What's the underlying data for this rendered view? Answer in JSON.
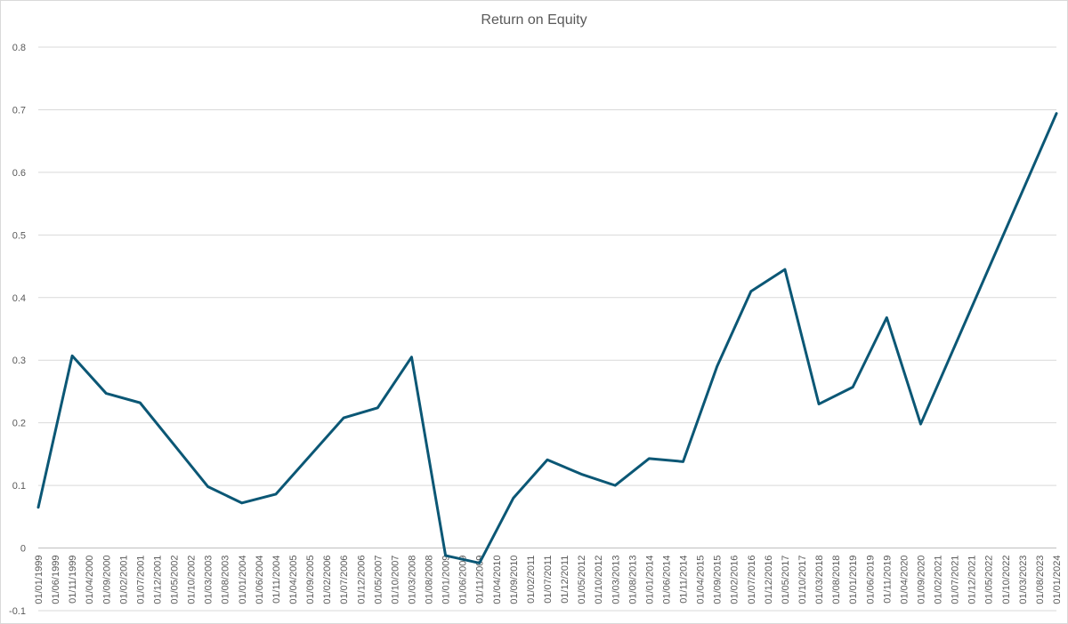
{
  "chart_data": {
    "type": "line",
    "title": "Return on Equity",
    "xlabel": "",
    "ylabel": "",
    "ylim": [
      -0.1,
      0.8
    ],
    "yticks": [
      -0.1,
      0,
      0.1,
      0.2,
      0.3,
      0.4,
      0.5,
      0.6,
      0.7,
      0.8
    ],
    "ytick_labels": [
      "-0.1",
      "0",
      "0.1",
      "0.2",
      "0.3",
      "0.4",
      "0.5",
      "0.6",
      "0.7",
      "0.8"
    ],
    "grid": true,
    "legend": "none",
    "line_color": "#0b5775",
    "categories": [
      "01/01/1999",
      "01/06/1999",
      "01/11/1999",
      "01/04/2000",
      "01/09/2000",
      "01/02/2001",
      "01/07/2001",
      "01/12/2001",
      "01/05/2002",
      "01/10/2002",
      "01/03/2003",
      "01/08/2003",
      "01/01/2004",
      "01/06/2004",
      "01/11/2004",
      "01/04/2005",
      "01/09/2005",
      "01/02/2006",
      "01/07/2006",
      "01/12/2006",
      "01/05/2007",
      "01/10/2007",
      "01/03/2008",
      "01/08/2008",
      "01/01/2009",
      "01/06/2009",
      "01/11/2009",
      "01/04/2010",
      "01/09/2010",
      "01/02/2011",
      "01/07/2011",
      "01/12/2011",
      "01/05/2012",
      "01/10/2012",
      "01/03/2013",
      "01/08/2013",
      "01/01/2014",
      "01/06/2014",
      "01/11/2014",
      "01/04/2015",
      "01/09/2015",
      "01/02/2016",
      "01/07/2016",
      "01/12/2016",
      "01/05/2017",
      "01/10/2017",
      "01/03/2018",
      "01/08/2018",
      "01/01/2019",
      "01/06/2019",
      "01/11/2019",
      "01/04/2020",
      "01/09/2020",
      "01/02/2021",
      "01/07/2021",
      "01/12/2021",
      "01/05/2022",
      "01/10/2022",
      "01/03/2023",
      "01/08/2023",
      "01/01/2024"
    ],
    "points": [
      {
        "x": "01/01/1999",
        "y": 0.065
      },
      {
        "x": "01/11/1999",
        "y": 0.307
      },
      {
        "x": "01/09/2000",
        "y": 0.247
      },
      {
        "x": "01/07/2001",
        "y": 0.232
      },
      {
        "x": "01/03/2003",
        "y": 0.098
      },
      {
        "x": "01/01/2004",
        "y": 0.072
      },
      {
        "x": "01/11/2004",
        "y": 0.086
      },
      {
        "x": "01/07/2006",
        "y": 0.208
      },
      {
        "x": "01/05/2007",
        "y": 0.224
      },
      {
        "x": "01/03/2008",
        "y": 0.305
      },
      {
        "x": "01/01/2009",
        "y": -0.012
      },
      {
        "x": "01/11/2009",
        "y": -0.024
      },
      {
        "x": "01/09/2010",
        "y": 0.08
      },
      {
        "x": "01/07/2011",
        "y": 0.141
      },
      {
        "x": "01/05/2012",
        "y": 0.118
      },
      {
        "x": "01/03/2013",
        "y": 0.1
      },
      {
        "x": "01/01/2014",
        "y": 0.143
      },
      {
        "x": "01/11/2014",
        "y": 0.138
      },
      {
        "x": "01/09/2015",
        "y": 0.29
      },
      {
        "x": "01/07/2016",
        "y": 0.41
      },
      {
        "x": "01/05/2017",
        "y": 0.445
      },
      {
        "x": "01/03/2018",
        "y": 0.23
      },
      {
        "x": "01/01/2019",
        "y": 0.257
      },
      {
        "x": "01/11/2019",
        "y": 0.368
      },
      {
        "x": "01/09/2020",
        "y": 0.198
      },
      {
        "x": "01/01/2024",
        "y": 0.694
      }
    ]
  }
}
